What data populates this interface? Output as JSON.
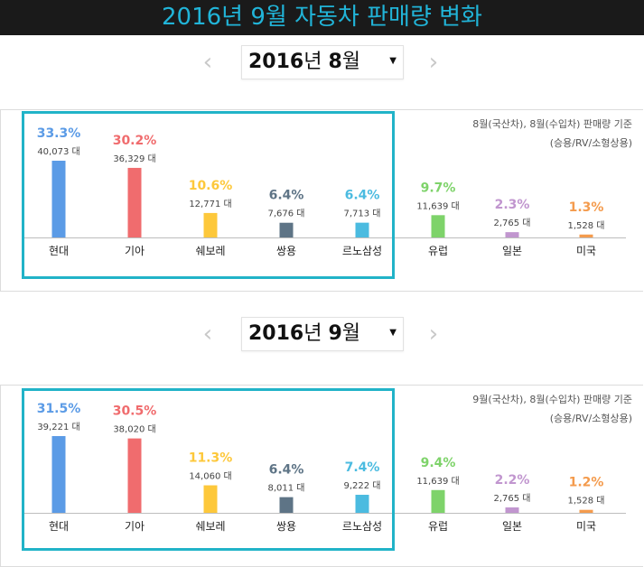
{
  "header": {
    "title": "2016년 9월 자동차 판매량 변화"
  },
  "panels": [
    {
      "nav": {
        "prev": "‹",
        "next": "›",
        "year": "2016",
        "year_suffix": "년 ",
        "month": "8",
        "month_suffix": "월",
        "caret": "▼"
      },
      "note_line1": "8월(국산차), 8월(수입차) 판매량 기준",
      "note_line2": "(승용/RV/소형상용)"
    },
    {
      "nav": {
        "prev": "‹",
        "next": "›",
        "year": "2016",
        "year_suffix": "년 ",
        "month": "9",
        "month_suffix": "월",
        "caret": "▼"
      },
      "note_line1": "9월(국산차), 8월(수입차) 판매량 기준",
      "note_line2": "(승용/RV/소형상용)"
    }
  ],
  "chart_data": [
    {
      "type": "bar",
      "categories": [
        "현대",
        "기아",
        "쉐보레",
        "쌍용",
        "르노삼성",
        "유럽",
        "일본",
        "미국"
      ],
      "colors": [
        "#5b9be6",
        "#f06c6e",
        "#fdc83b",
        "#5e7486",
        "#4bbbe0",
        "#7ed36a",
        "#c196cf",
        "#f49b4d"
      ],
      "shares": [
        "33.3%",
        "30.2%",
        "10.6%",
        "6.4%",
        "6.4%",
        "9.7%",
        "2.3%",
        "1.3%"
      ],
      "unit_labels": [
        "40,073 대",
        "36,329 대",
        "12,771 대",
        "7,676 대",
        "7,713 대",
        "11,639 대",
        "2,765 대",
        "1,528 대"
      ],
      "values": [
        40073,
        36329,
        12771,
        7676,
        7713,
        11639,
        2765,
        1528
      ]
    },
    {
      "type": "bar",
      "categories": [
        "현대",
        "기아",
        "쉐보레",
        "쌍용",
        "르노삼성",
        "유럽",
        "일본",
        "미국"
      ],
      "colors": [
        "#5b9be6",
        "#f06c6e",
        "#fdc83b",
        "#5e7486",
        "#4bbbe0",
        "#7ed36a",
        "#c196cf",
        "#f49b4d"
      ],
      "shares": [
        "31.5%",
        "30.5%",
        "11.3%",
        "6.4%",
        "7.4%",
        "9.4%",
        "2.2%",
        "1.2%"
      ],
      "unit_labels": [
        "39,221 대",
        "38,020 대",
        "14,060 대",
        "8,011 대",
        "9,222 대",
        "11,639 대",
        "2,765 대",
        "1,528 대"
      ],
      "values": [
        39221,
        38020,
        14060,
        8011,
        9222,
        11639,
        2765,
        1528
      ]
    }
  ]
}
